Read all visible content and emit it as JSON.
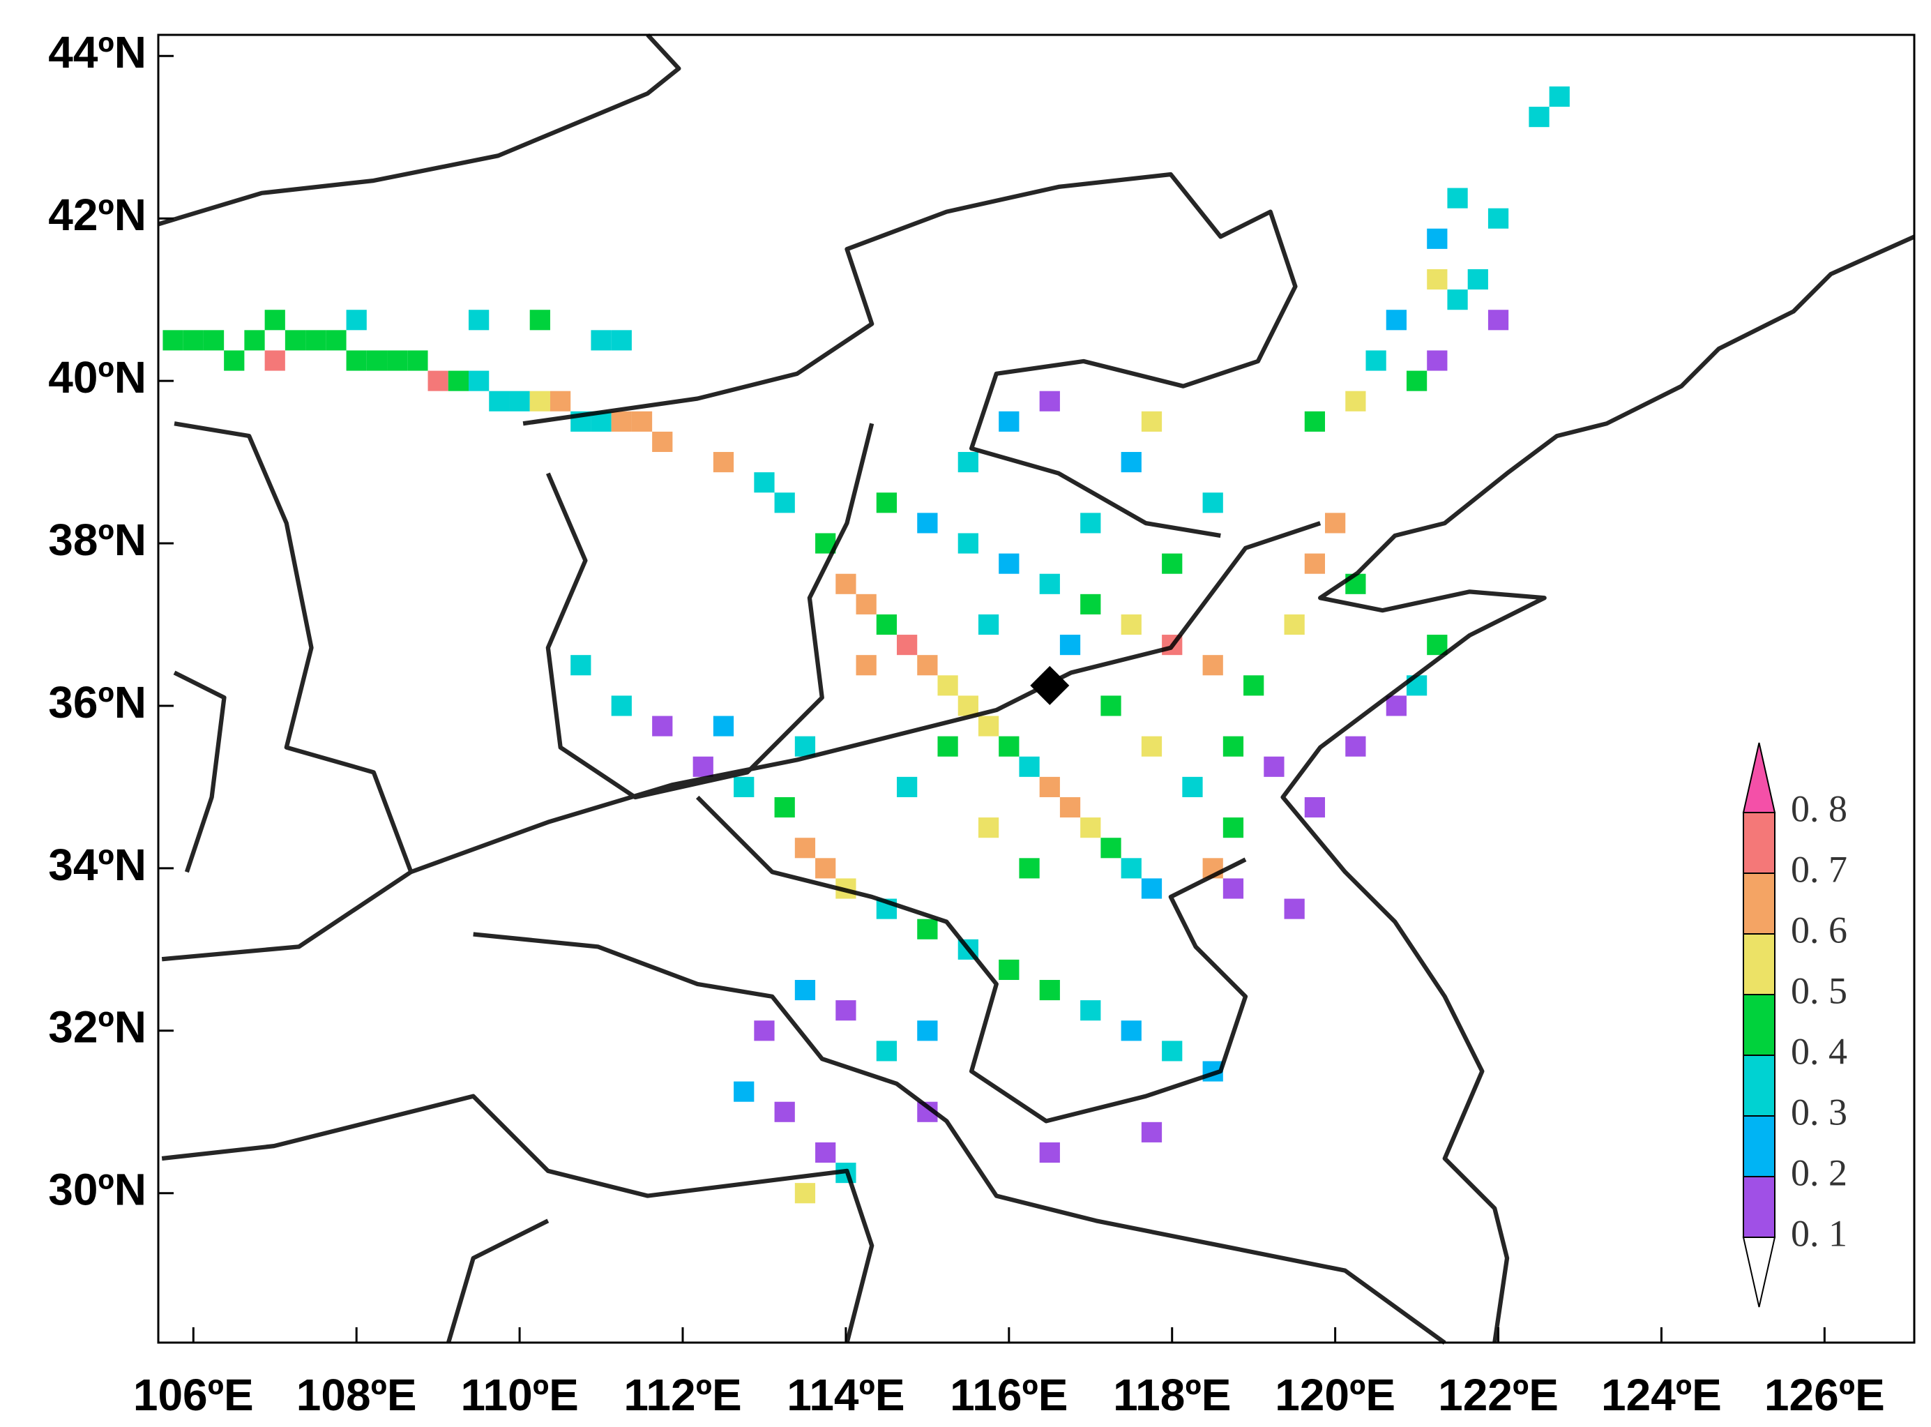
{
  "chart_data": {
    "type": "grid-map",
    "xlim": [
      105.57,
      127.1
    ],
    "ylim": [
      28.16,
      44.26
    ],
    "xticks": [
      {
        "value": 106,
        "label": "106ºE"
      },
      {
        "value": 108,
        "label": "108ºE"
      },
      {
        "value": 110,
        "label": "110ºE"
      },
      {
        "value": 112,
        "label": "112ºE"
      },
      {
        "value": 114,
        "label": "114ºE"
      },
      {
        "value": 116,
        "label": "116ºE"
      },
      {
        "value": 118,
        "label": "118ºE"
      },
      {
        "value": 120,
        "label": "120ºE"
      },
      {
        "value": 122,
        "label": "122ºE"
      },
      {
        "value": 124,
        "label": "124ºE"
      },
      {
        "value": 126,
        "label": "126ºE"
      }
    ],
    "yticks": [
      {
        "value": 30,
        "label": "30ºN"
      },
      {
        "value": 32,
        "label": "32ºN"
      },
      {
        "value": 34,
        "label": "34ºN"
      },
      {
        "value": 36,
        "label": "36ºN"
      },
      {
        "value": 38,
        "label": "38ºN"
      },
      {
        "value": 40,
        "label": "40ºN"
      },
      {
        "value": 42,
        "label": "42ºN"
      },
      {
        "value": 44,
        "label": "44ºN"
      }
    ],
    "levels": [
      {
        "value": 0.1,
        "label": "0. 1"
      },
      {
        "value": 0.2,
        "label": "0. 2"
      },
      {
        "value": 0.3,
        "label": "0. 3"
      },
      {
        "value": 0.4,
        "label": "0. 4"
      },
      {
        "value": 0.5,
        "label": "0. 5"
      },
      {
        "value": 0.6,
        "label": "0. 6"
      },
      {
        "value": 0.7,
        "label": "0. 7"
      },
      {
        "value": 0.8,
        "label": "0. 8"
      }
    ],
    "colors": [
      "#ffffff",
      "#a050e6",
      "#00b4f4",
      "#00d2d2",
      "#00d23c",
      "#ece266",
      "#f4a464",
      "#f47878",
      "#f450a8"
    ],
    "site": {
      "lon": 116.5,
      "lat": 36.25
    },
    "cells": [
      [
        105.75,
        40.5,
        0.45
      ],
      [
        106,
        40.5,
        0.45
      ],
      [
        106.25,
        40.5,
        0.45
      ],
      [
        106.5,
        40.25,
        0.45
      ],
      [
        106.75,
        40.5,
        0.45
      ],
      [
        107,
        40.25,
        0.75
      ],
      [
        107,
        40.75,
        0.45
      ],
      [
        107.25,
        40.5,
        0.45
      ],
      [
        107.5,
        40.5,
        0.45
      ],
      [
        107.75,
        40.5,
        0.45
      ],
      [
        108,
        40.25,
        0.45
      ],
      [
        108.25,
        40.25,
        0.45
      ],
      [
        108.5,
        40.25,
        0.45
      ],
      [
        108.75,
        40.25,
        0.45
      ],
      [
        109,
        40,
        0.75
      ],
      [
        109.25,
        40,
        0.45
      ],
      [
        109.5,
        40,
        0.35
      ],
      [
        109.75,
        39.75,
        0.35
      ],
      [
        110,
        39.75,
        0.35
      ],
      [
        110.25,
        39.75,
        0.55
      ],
      [
        110.5,
        39.75,
        0.65
      ],
      [
        110.75,
        39.5,
        0.35
      ],
      [
        111,
        39.5,
        0.35
      ],
      [
        111.25,
        39.5,
        0.65
      ],
      [
        111.5,
        39.5,
        0.65
      ],
      [
        111.75,
        39.25,
        0.65
      ],
      [
        109.5,
        40.75,
        0.35
      ],
      [
        111,
        40.5,
        0.35
      ],
      [
        111.25,
        40.5,
        0.35
      ],
      [
        110.25,
        40.75,
        0.45
      ],
      [
        108,
        40.75,
        0.35
      ],
      [
        122.75,
        43.5,
        0.35
      ],
      [
        122.5,
        43.25,
        0.35
      ],
      [
        121.5,
        42.25,
        0.35
      ],
      [
        121.25,
        41.75,
        0.25
      ],
      [
        121.5,
        41,
        0.35
      ],
      [
        120.75,
        40.75,
        0.25
      ],
      [
        121,
        40,
        0.45
      ],
      [
        121.25,
        40.25,
        0.15
      ],
      [
        120.5,
        40.25,
        0.35
      ],
      [
        122,
        42,
        0.35
      ],
      [
        121.75,
        41.25,
        0.35
      ],
      [
        120.25,
        39.75,
        0.55
      ],
      [
        119.75,
        39.5,
        0.45
      ],
      [
        121.25,
        41.25,
        0.55
      ],
      [
        122,
        40.75,
        0.15
      ],
      [
        112.5,
        39,
        0.65
      ],
      [
        113,
        38.75,
        0.35
      ],
      [
        113.25,
        38.5,
        0.35
      ],
      [
        113.75,
        38,
        0.45
      ],
      [
        114,
        37.5,
        0.65
      ],
      [
        114.25,
        37.25,
        0.65
      ],
      [
        114.5,
        37,
        0.45
      ],
      [
        114.75,
        36.75,
        0.75
      ],
      [
        115,
        36.5,
        0.65
      ],
      [
        115.25,
        36.25,
        0.55
      ],
      [
        115.5,
        36,
        0.55
      ],
      [
        115.75,
        35.75,
        0.55
      ],
      [
        116,
        35.5,
        0.45
      ],
      [
        116.25,
        35.25,
        0.35
      ],
      [
        116.5,
        35,
        0.65
      ],
      [
        116.75,
        34.75,
        0.65
      ],
      [
        117,
        34.5,
        0.55
      ],
      [
        117.25,
        34.25,
        0.45
      ],
      [
        117.5,
        34,
        0.35
      ],
      [
        117.75,
        33.75,
        0.25
      ],
      [
        114.5,
        38.5,
        0.45
      ],
      [
        115,
        38.25,
        0.25
      ],
      [
        115.5,
        38,
        0.35
      ],
      [
        116,
        37.75,
        0.25
      ],
      [
        116.5,
        37.5,
        0.35
      ],
      [
        117,
        37.25,
        0.45
      ],
      [
        117.5,
        37,
        0.55
      ],
      [
        118,
        36.75,
        0.75
      ],
      [
        118.5,
        36.5,
        0.65
      ],
      [
        119,
        36.25,
        0.45
      ],
      [
        119.5,
        37,
        0.55
      ],
      [
        119.75,
        37.75,
        0.65
      ],
      [
        120,
        38.25,
        0.65
      ],
      [
        120.25,
        37.5,
        0.45
      ],
      [
        118.5,
        38.5,
        0.35
      ],
      [
        117.5,
        39,
        0.25
      ],
      [
        117.75,
        39.5,
        0.55
      ],
      [
        116.5,
        39.75,
        0.15
      ],
      [
        116,
        39.5,
        0.25
      ],
      [
        115.5,
        39,
        0.35
      ],
      [
        117,
        38.25,
        0.35
      ],
      [
        118,
        37.75,
        0.45
      ],
      [
        112.25,
        35.25,
        0.15
      ],
      [
        112.75,
        35,
        0.35
      ],
      [
        113.25,
        34.75,
        0.45
      ],
      [
        113.5,
        34.25,
        0.65
      ],
      [
        113.75,
        34,
        0.65
      ],
      [
        114,
        33.75,
        0.55
      ],
      [
        114.5,
        33.5,
        0.35
      ],
      [
        115,
        33.25,
        0.45
      ],
      [
        115.5,
        33,
        0.35
      ],
      [
        116,
        32.75,
        0.45
      ],
      [
        116.5,
        32.5,
        0.45
      ],
      [
        117,
        32.25,
        0.35
      ],
      [
        117.5,
        32,
        0.25
      ],
      [
        118,
        31.75,
        0.35
      ],
      [
        118.5,
        31.5,
        0.25
      ],
      [
        115,
        32,
        0.25
      ],
      [
        114.5,
        31.75,
        0.35
      ],
      [
        114,
        32.25,
        0.15
      ],
      [
        113.5,
        32.5,
        0.25
      ],
      [
        113,
        32,
        0.15
      ],
      [
        112.75,
        31.25,
        0.25
      ],
      [
        113.25,
        31,
        0.15
      ],
      [
        113.75,
        30.5,
        0.15
      ],
      [
        114,
        30.25,
        0.35
      ],
      [
        113.5,
        30,
        0.55
      ],
      [
        115,
        31,
        0.15
      ],
      [
        116.5,
        30.5,
        0.15
      ],
      [
        117.75,
        30.75,
        0.15
      ],
      [
        118.75,
        34.5,
        0.45
      ],
      [
        118.5,
        34,
        0.65
      ],
      [
        118.25,
        35,
        0.35
      ],
      [
        118.75,
        35.5,
        0.45
      ],
      [
        119.25,
        35.25,
        0.15
      ],
      [
        119.75,
        34.75,
        0.15
      ],
      [
        120.25,
        35.5,
        0.15
      ],
      [
        120.75,
        36,
        0.15
      ],
      [
        121.25,
        36.75,
        0.45
      ],
      [
        121,
        36.25,
        0.35
      ],
      [
        119.5,
        33.5,
        0.15
      ],
      [
        118.75,
        33.75,
        0.15
      ],
      [
        115.75,
        34.5,
        0.55
      ],
      [
        116.25,
        34,
        0.45
      ],
      [
        114.75,
        35,
        0.35
      ],
      [
        115.25,
        35.5,
        0.45
      ],
      [
        117.75,
        35.5,
        0.55
      ],
      [
        117.25,
        36,
        0.45
      ],
      [
        116.75,
        36.75,
        0.25
      ],
      [
        115.75,
        37,
        0.35
      ],
      [
        114.25,
        36.5,
        0.65
      ],
      [
        113.5,
        35.5,
        0.35
      ],
      [
        110.75,
        36.5,
        0.35
      ],
      [
        111.25,
        36,
        0.35
      ],
      [
        111.75,
        35.75,
        0.15
      ],
      [
        112.5,
        35.75,
        0.25
      ]
    ]
  }
}
